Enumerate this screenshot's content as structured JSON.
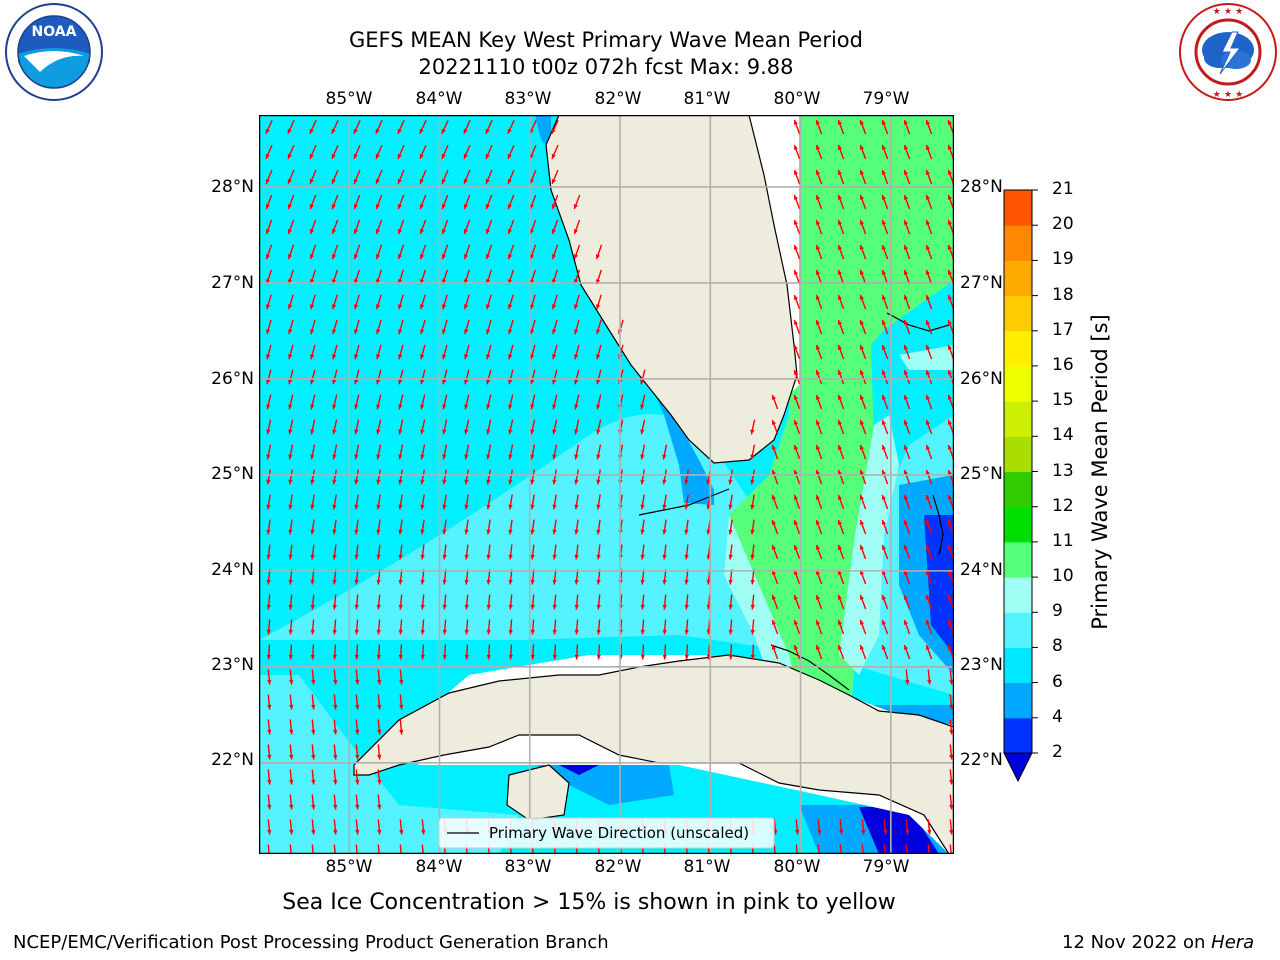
{
  "title": {
    "line1": "GEFS MEAN Key West Primary Wave Mean Period",
    "line2": "20221110 t00z 072h fcst   Max: 9.88"
  },
  "logos": {
    "noaa_text": "NOAA",
    "noaa_ring": "NATIONAL OCEANIC AND ATMOSPHERIC ADMINISTRATION · U.S. DEPARTMENT OF COMMERCE",
    "nws_ring": "NATIONAL WEATHER SERVICE"
  },
  "map": {
    "lon_range": [
      -86,
      -78.3
    ],
    "lat_range": [
      21.05,
      28.75
    ],
    "lon_ticks": [
      "85°W",
      "84°W",
      "83°W",
      "82°W",
      "81°W",
      "80°W",
      "79°W"
    ],
    "lat_ticks": [
      "28°N",
      "27°N",
      "26°N",
      "25°N",
      "24°N",
      "23°N",
      "22°N"
    ],
    "grid": true,
    "arrow_color": "#ff0000",
    "land_color": "#eeecdc",
    "legend_label": "Primary Wave Direction (unscaled)"
  },
  "colorbar": {
    "label": "Primary Wave Mean Period [s]",
    "ticks": [
      "2",
      "4",
      "6",
      "8",
      "9",
      "10",
      "11",
      "12",
      "13",
      "14",
      "15",
      "16",
      "17",
      "18",
      "19",
      "20",
      "21"
    ],
    "colors": [
      "#0033ff",
      "#00a8ff",
      "#00e8ff",
      "#55f2ff",
      "#a0fff4",
      "#55ff7a",
      "#00e000",
      "#33cc00",
      "#aadd00",
      "#ccee00",
      "#eeff00",
      "#ffee00",
      "#ffcc00",
      "#ffaa00",
      "#ff8800",
      "#ff5500",
      "#ff2200",
      "#ff0000"
    ],
    "under_color": "#0000dd"
  },
  "note": "Sea Ice Concentration > 15% is shown in pink to yellow",
  "footer": {
    "left": "NCEP/EMC/Verification Post Processing Product Generation Branch",
    "date": "12 Nov 2022 on ",
    "machine": "Hera"
  }
}
